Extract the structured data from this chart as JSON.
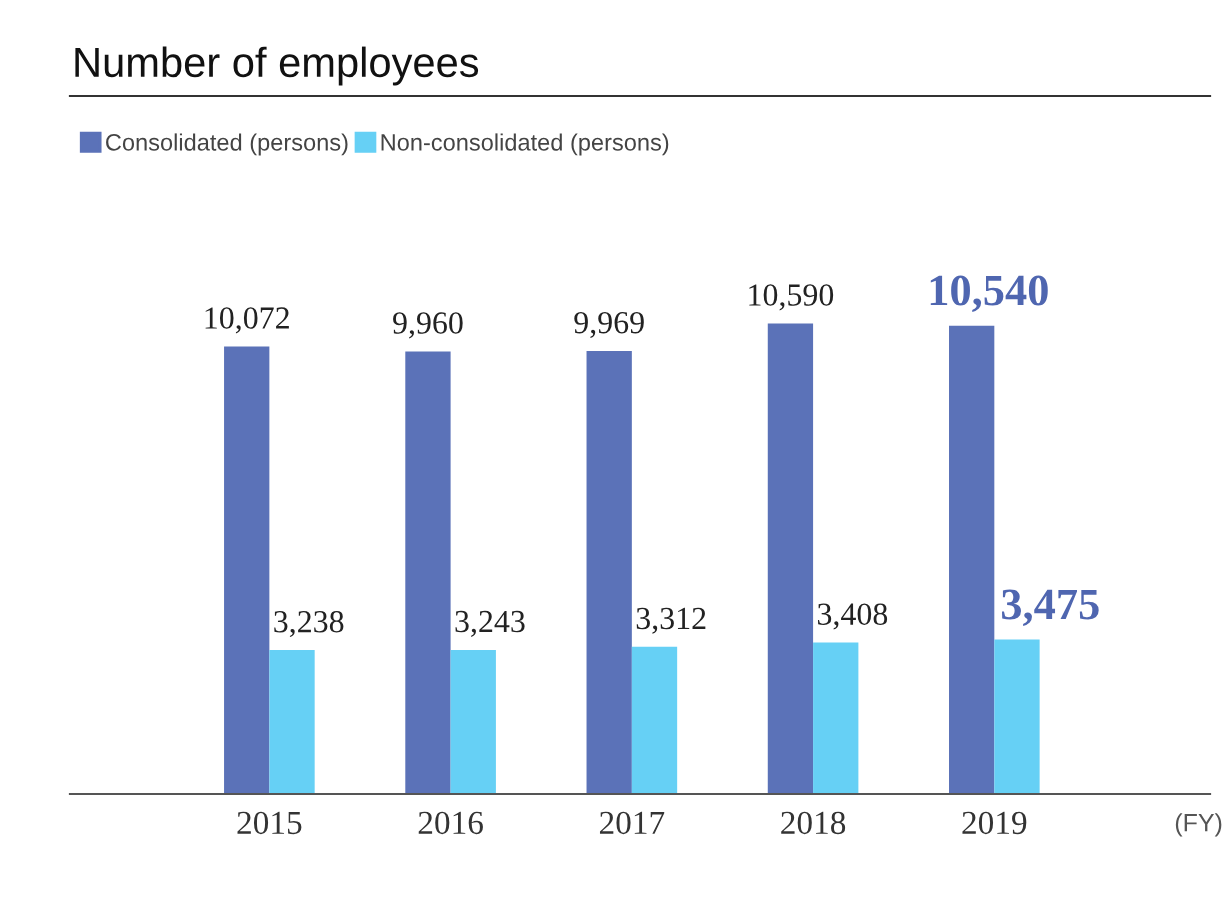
{
  "chart_data": {
    "type": "bar",
    "title": "Number of employees",
    "categories": [
      "2015",
      "2016",
      "2017",
      "2018",
      "2019"
    ],
    "series": [
      {
        "name": "Consolidated (persons)",
        "color": "#5b72b8",
        "values": [
          10072,
          9960,
          9969,
          10590,
          10540
        ],
        "value_labels": [
          "10,072",
          "9,960",
          "9,969",
          "10,590",
          "10,540"
        ]
      },
      {
        "name": "Non-consolidated (persons)",
        "color": "#66d0f5",
        "values": [
          3238,
          3243,
          3312,
          3408,
          3475
        ],
        "value_labels": [
          "3,238",
          "3,243",
          "3,312",
          "3,408",
          "3,475"
        ]
      }
    ],
    "annotations": [
      "(FY)"
    ],
    "legend": "top left",
    "grid": false
  }
}
